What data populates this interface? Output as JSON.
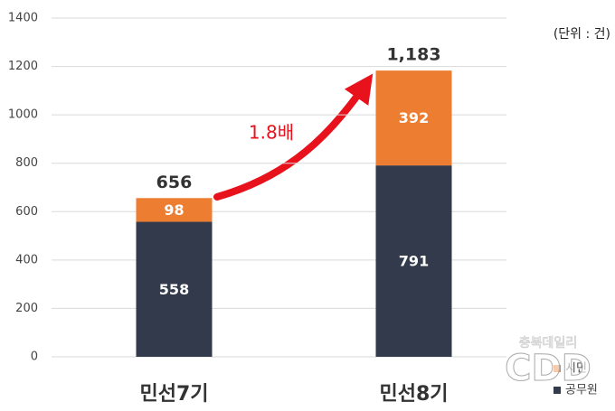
{
  "chart_data": {
    "type": "stacked_bar",
    "unit_note": "(단위 : 건)",
    "annotation": "1.8배",
    "categories": [
      "민선7기",
      "민선8기"
    ],
    "series": [
      {
        "name": "공무원",
        "color": "#323a4b",
        "values": [
          558,
          791
        ]
      },
      {
        "name": "시민",
        "color": "#ed7d31",
        "values": [
          98,
          392
        ]
      }
    ],
    "totals": {
      "values": [
        656,
        1183
      ],
      "value_labels": [
        "656",
        "1,183"
      ]
    },
    "ylim": [
      0,
      1400
    ],
    "yticks": [
      0,
      200,
      400,
      600,
      800,
      1000,
      1200,
      1400
    ],
    "grid": true,
    "legend": "bottom-right",
    "watermark": [
      "충북데일리",
      "CDD"
    ]
  }
}
